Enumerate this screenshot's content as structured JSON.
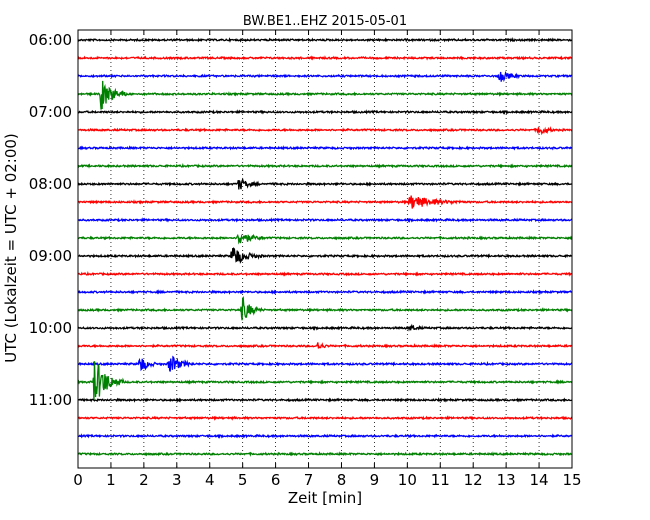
{
  "chart_data": {
    "type": "line",
    "title": "BW.BE1..EHZ 2015-05-01",
    "xlabel": "Zeit  [min]",
    "ylabel": "UTC (Lokalzeit = UTC + 02:00)",
    "xlim": [
      0,
      15
    ],
    "x_ticks": [
      "0",
      "1",
      "2",
      "3",
      "4",
      "5",
      "6",
      "7",
      "8",
      "9",
      "10",
      "11",
      "12",
      "13",
      "14",
      "15"
    ],
    "y_ticks": [
      "06:00",
      "07:00",
      "08:00",
      "09:00",
      "10:00",
      "11:00"
    ],
    "grid": true,
    "trace_interval_minutes": 15,
    "first_trace": "06:00",
    "trace_colors": [
      "#000000",
      "#ff0000",
      "#0000ff",
      "#008000"
    ],
    "series": [
      {
        "start": "06:00",
        "events": []
      },
      {
        "start": "06:15",
        "events": []
      },
      {
        "start": "06:30",
        "events": [
          {
            "minute": 12.8,
            "amplitude": 0.35,
            "duration_min": 0.6
          }
        ]
      },
      {
        "start": "06:45",
        "events": [
          {
            "minute": 0.7,
            "amplitude": 0.9,
            "duration_min": 0.8
          }
        ]
      },
      {
        "start": "07:00",
        "events": []
      },
      {
        "start": "07:15",
        "events": [
          {
            "minute": 14.0,
            "amplitude": 0.3,
            "duration_min": 0.5
          }
        ]
      },
      {
        "start": "07:30",
        "events": []
      },
      {
        "start": "07:45",
        "events": []
      },
      {
        "start": "08:00",
        "events": [
          {
            "minute": 4.9,
            "amplitude": 0.35,
            "duration_min": 0.6
          }
        ]
      },
      {
        "start": "08:15",
        "events": [
          {
            "minute": 10.1,
            "amplitude": 0.4,
            "duration_min": 1.6
          }
        ]
      },
      {
        "start": "08:30",
        "events": []
      },
      {
        "start": "08:45",
        "events": [
          {
            "minute": 4.9,
            "amplitude": 0.4,
            "duration_min": 0.8
          }
        ]
      },
      {
        "start": "09:00",
        "events": [
          {
            "minute": 4.7,
            "amplitude": 0.6,
            "duration_min": 0.9
          }
        ]
      },
      {
        "start": "09:15",
        "events": []
      },
      {
        "start": "09:30",
        "events": []
      },
      {
        "start": "09:45",
        "events": [
          {
            "minute": 5.0,
            "amplitude": 0.7,
            "duration_min": 0.6
          }
        ]
      },
      {
        "start": "10:00",
        "events": [
          {
            "minute": 10.1,
            "amplitude": 0.15,
            "duration_min": 0.4
          }
        ]
      },
      {
        "start": "10:15",
        "events": [
          {
            "minute": 7.3,
            "amplitude": 0.25,
            "duration_min": 0.3
          }
        ]
      },
      {
        "start": "10:30",
        "events": [
          {
            "minute": 1.9,
            "amplitude": 0.5,
            "duration_min": 0.5
          },
          {
            "minute": 2.8,
            "amplitude": 0.55,
            "duration_min": 0.7
          }
        ]
      },
      {
        "start": "10:45",
        "events": [
          {
            "minute": 0.5,
            "amplitude": 1.4,
            "duration_min": 0.9
          }
        ]
      },
      {
        "start": "11:00",
        "events": []
      },
      {
        "start": "11:15",
        "events": []
      },
      {
        "start": "11:30",
        "events": []
      },
      {
        "start": "11:45",
        "events": []
      }
    ]
  }
}
